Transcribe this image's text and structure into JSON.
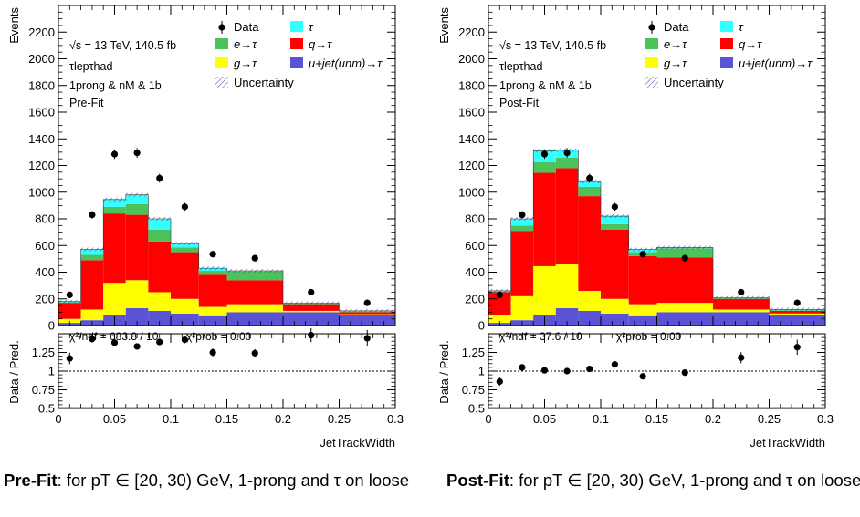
{
  "colors": {
    "tau": "#33FFFF",
    "e_tau": "#4CC35A",
    "q_tau": "#FF0000",
    "g_tau": "#FFFF00",
    "mu_tau": "#5A53D8",
    "data": "#000000"
  },
  "legend": {
    "data": "Data",
    "tau": "τ",
    "e_tau": "e→τ",
    "q_tau": "q→τ",
    "g_tau": "g→τ",
    "mu_tau": "μ+jet(unm)→τ",
    "uncertainty": "Uncertainty"
  },
  "annotations": {
    "energy": "√s = 13 TeV, 140.5 fb",
    "channel": "τlepτhad",
    "selection": "1prong & nM & 1b"
  },
  "axes": {
    "xlabel": "JetTrackWidth",
    "ylabel_top": "Events",
    "ylabel_bottom": "Data / Pred."
  },
  "chart_data": [
    {
      "type": "bar",
      "stage": "Pre-Fit",
      "chi2_text": "χ²/ndf = 683.8 / 10",
      "chi2prob_text": "χ²prob = 0.00",
      "caption_bold": "Pre-Fit",
      "caption_rest": ": for pT ∈ [20, 30) GeV, 1-prong and τ on loose",
      "xlim": [
        0,
        0.3
      ],
      "ylim": [
        0,
        2400
      ],
      "ratio_ylim": [
        0.5,
        1.5
      ],
      "x_ticks": [
        "0",
        "0.05",
        "0.1",
        "0.15",
        "0.2",
        "0.25",
        "0.3"
      ],
      "y_ticks": [
        "0",
        "200",
        "400",
        "600",
        "800",
        "1000",
        "1200",
        "1400",
        "1600",
        "1800",
        "2000",
        "2200"
      ],
      "ratio_ticks": [
        "0.5",
        "0.75",
        "1",
        "1.25"
      ],
      "bin_edges": [
        0,
        0.02,
        0.04,
        0.06,
        0.08,
        0.1,
        0.125,
        0.15,
        0.2,
        0.25,
        0.3
      ],
      "stack": {
        "mu_tau": [
          20,
          40,
          80,
          130,
          110,
          90,
          70,
          100,
          100,
          80
        ],
        "g_tau": [
          30,
          80,
          240,
          210,
          140,
          110,
          70,
          60,
          10,
          5
        ],
        "q_tau": [
          120,
          370,
          520,
          490,
          380,
          350,
          240,
          180,
          50,
          15
        ],
        "e_tau": [
          5,
          40,
          50,
          80,
          90,
          35,
          30,
          65,
          5,
          5
        ],
        "tau": [
          5,
          40,
          55,
          70,
          80,
          30,
          20,
          5,
          2,
          5
        ]
      },
      "data_x": [
        0.01,
        0.03,
        0.05,
        0.07,
        0.09,
        0.1125,
        0.1375,
        0.175,
        0.225,
        0.275
      ],
      "data_y": [
        230,
        830,
        1285,
        1295,
        1105,
        890,
        535,
        505,
        250,
        170
      ],
      "ratio_y": [
        1.17,
        1.43,
        1.38,
        1.33,
        1.39,
        1.42,
        1.25,
        1.24,
        1.48,
        1.44
      ]
    },
    {
      "type": "bar",
      "stage": "Post-Fit",
      "chi2_text": "χ²/ndf = 37.6 / 10",
      "chi2prob_text": "χ²prob = 0.00",
      "caption_bold": "Post-Fit",
      "caption_rest": ": for pT ∈ [20, 30) GeV, 1-prong and τ on loose",
      "xlim": [
        0,
        0.3
      ],
      "ylim": [
        0,
        2400
      ],
      "ratio_ylim": [
        0.5,
        1.5
      ],
      "x_ticks": [
        "0",
        "0.05",
        "0.1",
        "0.15",
        "0.2",
        "0.25",
        "0.3"
      ],
      "y_ticks": [
        "0",
        "200",
        "400",
        "600",
        "800",
        "1000",
        "1200",
        "1400",
        "1600",
        "1800",
        "2000",
        "2200"
      ],
      "ratio_ticks": [
        "0.5",
        "0.75",
        "1",
        "1.25"
      ],
      "bin_edges": [
        0,
        0.02,
        0.04,
        0.06,
        0.08,
        0.1,
        0.125,
        0.15,
        0.2,
        0.25,
        0.3
      ],
      "stack": {
        "mu_tau": [
          20,
          40,
          80,
          130,
          110,
          90,
          70,
          100,
          100,
          80
        ],
        "g_tau": [
          60,
          180,
          365,
          330,
          150,
          110,
          90,
          70,
          20,
          10
        ],
        "q_tau": [
          170,
          490,
          700,
          720,
          710,
          520,
          360,
          340,
          80,
          20
        ],
        "e_tau": [
          5,
          40,
          80,
          80,
          70,
          40,
          30,
          70,
          5,
          5
        ],
        "tau": [
          5,
          50,
          85,
          55,
          40,
          60,
          20,
          5,
          2,
          5
        ]
      },
      "data_x": [
        0.01,
        0.03,
        0.05,
        0.07,
        0.09,
        0.1125,
        0.1375,
        0.175,
        0.225,
        0.275
      ],
      "data_y": [
        230,
        830,
        1285,
        1295,
        1105,
        890,
        535,
        505,
        250,
        170
      ],
      "ratio_y": [
        0.86,
        1.05,
        1.01,
        1.0,
        1.03,
        1.09,
        0.93,
        0.98,
        1.18,
        1.32
      ]
    }
  ]
}
